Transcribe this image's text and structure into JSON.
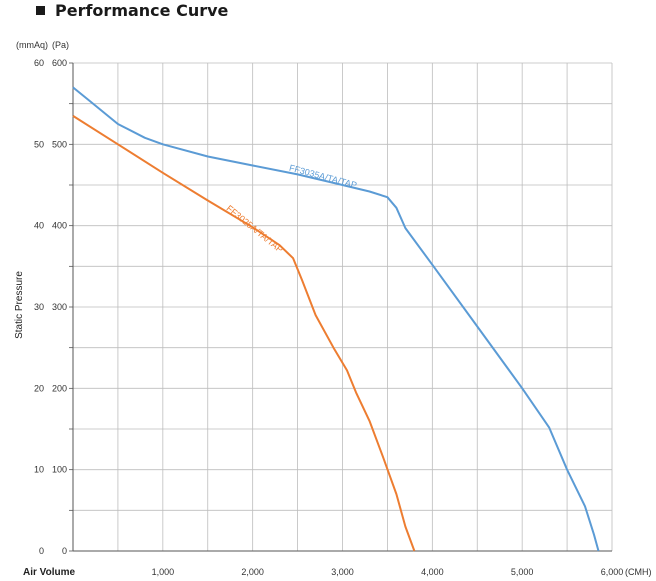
{
  "title": "Performance Curve",
  "chart_data": {
    "type": "line",
    "xlabel": "Air Volume",
    "xunit": "(CMH)",
    "ylabel": "Static Pressure",
    "y_unit_left": "(mmAq)",
    "y_unit_right": "(Pa)",
    "xlim": [
      0,
      6000
    ],
    "ylim_pa": [
      0,
      600
    ],
    "ylim_mmaq": [
      0,
      60
    ],
    "x_ticks": [
      {
        "value": 1000,
        "label": "1,000"
      },
      {
        "value": 2000,
        "label": "2,000"
      },
      {
        "value": 3000,
        "label": "3,000"
      },
      {
        "value": 4000,
        "label": "4,000"
      },
      {
        "value": 5000,
        "label": "5,000"
      },
      {
        "value": 6000,
        "label": "6,000"
      }
    ],
    "y_ticks_pa": [
      {
        "value": 0,
        "label": "0"
      },
      {
        "value": 100,
        "label": "100"
      },
      {
        "value": 200,
        "label": "200"
      },
      {
        "value": 300,
        "label": "300"
      },
      {
        "value": 400,
        "label": "400"
      },
      {
        "value": 500,
        "label": "500"
      },
      {
        "value": 600,
        "label": "600"
      }
    ],
    "y_ticks_mmaq": [
      {
        "value": 0,
        "label": "0"
      },
      {
        "value": 10,
        "label": "10"
      },
      {
        "value": 20,
        "label": "20"
      },
      {
        "value": 30,
        "label": "30"
      },
      {
        "value": 40,
        "label": "40"
      },
      {
        "value": 50,
        "label": "50"
      },
      {
        "value": 60,
        "label": "60"
      }
    ],
    "grid": true,
    "series": [
      {
        "name": "FF3035A/TA/TAP",
        "color": "#5b9bd5",
        "points": [
          [
            0,
            570
          ],
          [
            200,
            552
          ],
          [
            500,
            525
          ],
          [
            800,
            508
          ],
          [
            1000,
            500
          ],
          [
            1500,
            485
          ],
          [
            2000,
            474
          ],
          [
            2500,
            463
          ],
          [
            3000,
            450
          ],
          [
            3300,
            442
          ],
          [
            3500,
            435
          ],
          [
            3600,
            422
          ],
          [
            3700,
            397
          ],
          [
            4000,
            352
          ],
          [
            4500,
            276
          ],
          [
            5000,
            200
          ],
          [
            5300,
            152
          ],
          [
            5500,
            100
          ],
          [
            5700,
            55
          ],
          [
            5800,
            20
          ],
          [
            5850,
            0
          ]
        ]
      },
      {
        "name": "FF3025A/TA/TAP",
        "color": "#ed7d31",
        "points": [
          [
            0,
            535
          ],
          [
            500,
            500
          ],
          [
            1000,
            465
          ],
          [
            1500,
            431
          ],
          [
            2000,
            398
          ],
          [
            2300,
            376
          ],
          [
            2450,
            360
          ],
          [
            2550,
            333
          ],
          [
            2700,
            290
          ],
          [
            2900,
            250
          ],
          [
            3050,
            222
          ],
          [
            3150,
            195
          ],
          [
            3300,
            160
          ],
          [
            3450,
            116
          ],
          [
            3600,
            70
          ],
          [
            3700,
            30
          ],
          [
            3800,
            0
          ]
        ]
      }
    ],
    "series_labels": [
      {
        "series": 0,
        "text": "FF3035A/TA/TAP",
        "x": 2400,
        "y": 468,
        "angle": 15
      },
      {
        "series": 1,
        "text": "FF3025A/TA/TAP",
        "x": 1700,
        "y": 420,
        "angle": 39
      }
    ]
  }
}
